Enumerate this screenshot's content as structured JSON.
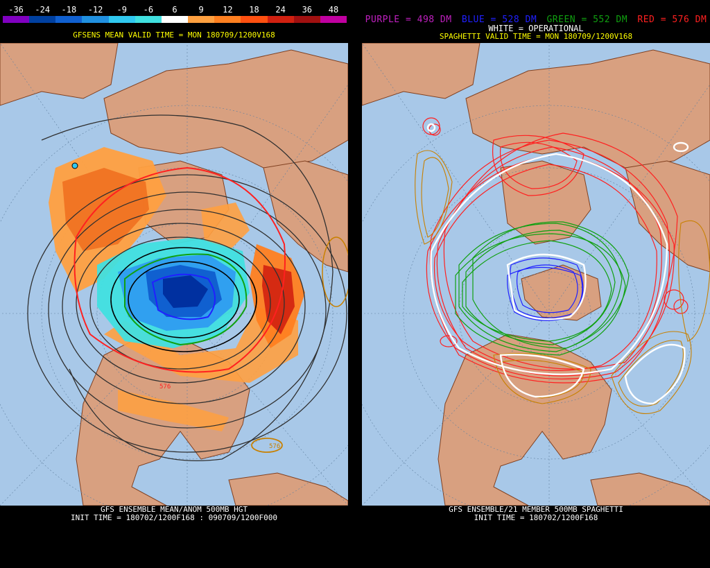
{
  "left_panel": {
    "scale": {
      "labels": [
        "-36",
        "-24",
        "-18",
        "-12",
        "-9",
        "-6",
        "6",
        "9",
        "12",
        "18",
        "24",
        "36",
        "48"
      ],
      "colors": [
        "#8000c0",
        "#0040a0",
        "#1060d0",
        "#2090e0",
        "#30c8f0",
        "#40e0e0",
        "#ffffff",
        "#ffa040",
        "#ff8020",
        "#ff5010",
        "#d02010",
        "#a01010",
        "#c000a0"
      ]
    },
    "valid_time": "GFSENS MEAN VALID TIME = MON 180709/1200V168",
    "footer_line1": "GFS ENSEMBLE MEAN/ANOM 500MB HGT",
    "footer_line2": "INIT TIME = 180702/1200F168 : 090709/1200F000",
    "contour_labels": [
      "576",
      "576"
    ]
  },
  "right_panel": {
    "legend": [
      {
        "text": "PURPLE = 498 DM",
        "color": "#c020c0"
      },
      {
        "text": "BLUE = 528 DM",
        "color": "#2020ff"
      },
      {
        "text": "GREEN = 552 DM",
        "color": "#10a010"
      },
      {
        "text": "RED = 576 DM",
        "color": "#ff2020"
      }
    ],
    "operational": "WHITE = OPERATIONAL",
    "valid_time": "SPAGHETTI VALID TIME = MON 180709/1200V168",
    "footer_line1": "GFS ENSEMBLE/21 MEMBER 500MB SPAGHETTI",
    "footer_line2": "INIT TIME = 180702/1200F168"
  },
  "colors": {
    "ocean": "#a8c8e8",
    "land": "#d8a080",
    "coast": "#804020"
  }
}
